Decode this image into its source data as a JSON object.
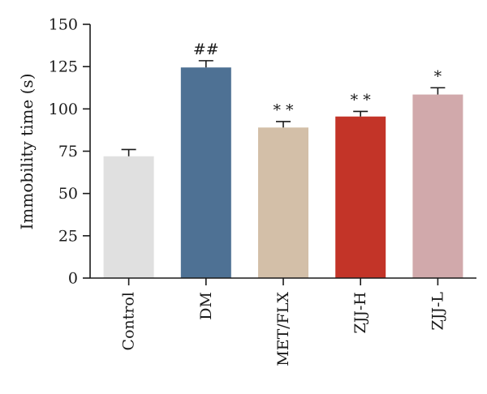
{
  "chart_data": {
    "type": "bar",
    "categories": [
      "Control",
      "DM",
      "MET/FLX",
      "ZJJ-H",
      "ZJJ-L"
    ],
    "values": [
      72,
      124.5,
      89,
      95.5,
      108.5
    ],
    "errors": [
      4,
      4,
      3.5,
      3,
      4
    ],
    "annotations": [
      "",
      "##",
      "* *",
      "* *",
      "*"
    ],
    "colors": [
      "#e0e0e0",
      "#4e7194",
      "#d3bfa8",
      "#c33428",
      "#d1a9ab"
    ],
    "ylabel": "Immobility time (s)",
    "ylim": [
      0,
      150
    ],
    "yticks": [
      0,
      25,
      50,
      75,
      100,
      125,
      150
    ],
    "grid": false
  }
}
